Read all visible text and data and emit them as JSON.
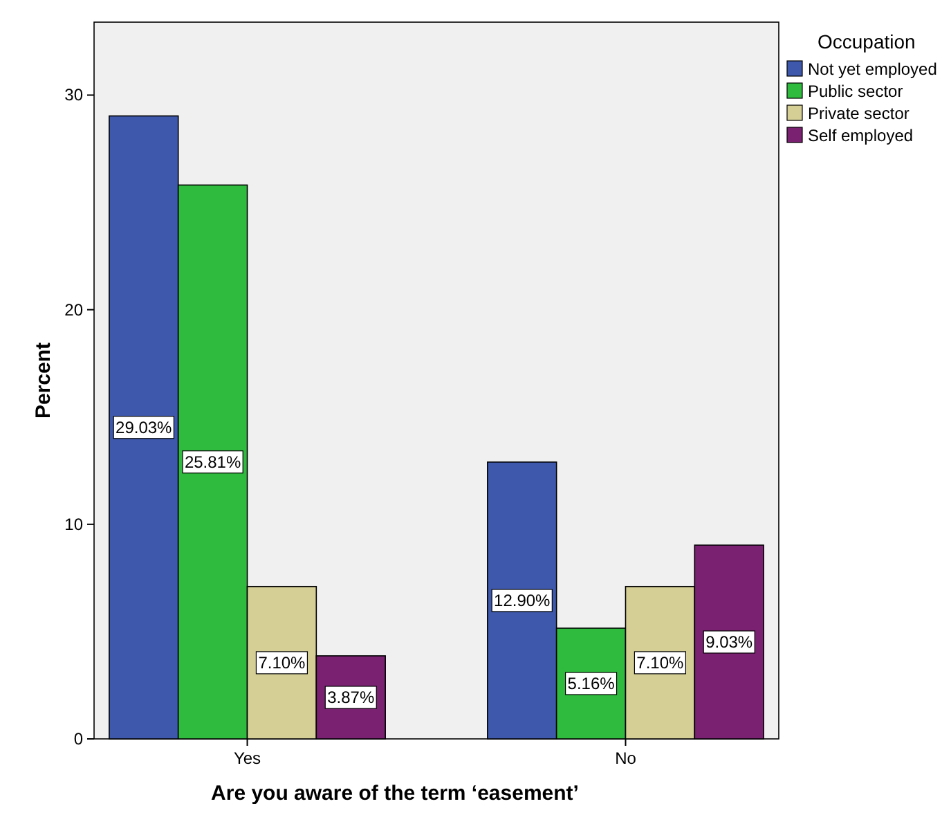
{
  "chart_data": {
    "type": "bar",
    "xlabel": "Are you aware of the term ‘easement’",
    "ylabel": "Percent",
    "legend_title": "Occupation",
    "legend": "top right",
    "categories": [
      "Yes",
      "No"
    ],
    "ylim": [
      0,
      33.4
    ],
    "yticks": [
      0,
      10,
      20,
      30
    ],
    "grid": false,
    "series": [
      {
        "name": "Not yet employed",
        "color": "#3e58ac",
        "values": [
          29.03,
          12.9
        ],
        "value_labels": [
          "29.03%",
          "12.90%"
        ]
      },
      {
        "name": "Public sector",
        "color": "#2ebb3e",
        "values": [
          25.81,
          5.16
        ],
        "value_labels": [
          "25.81%",
          "5.16%"
        ]
      },
      {
        "name": "Private sector",
        "color": "#d5cf96",
        "values": [
          7.1,
          7.1
        ],
        "value_labels": [
          "7.10%",
          "7.10%"
        ]
      },
      {
        "name": "Self employed",
        "color": "#7a2171",
        "values": [
          3.87,
          9.03
        ],
        "value_labels": [
          "3.87%",
          "9.03%"
        ]
      }
    ]
  }
}
